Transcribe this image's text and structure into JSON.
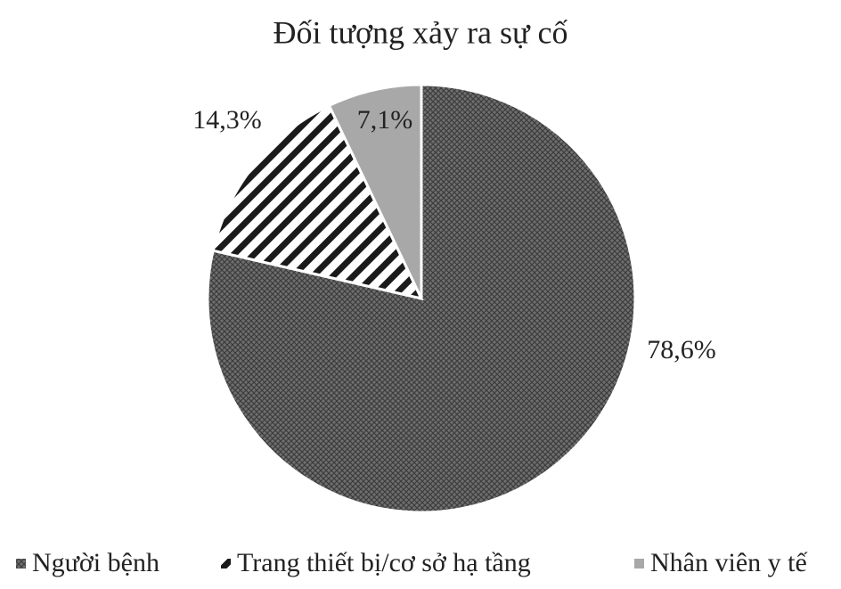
{
  "chart_data": {
    "type": "pie",
    "title": "Đối tượng xảy ra sự cố",
    "categories": [
      "Người bệnh",
      "Trang thiết bị/cơ sở hạ tầng",
      "Nhân viên y tế"
    ],
    "values": [
      78.6,
      14.3,
      7.1
    ],
    "value_labels": [
      "78,6%",
      "14,3%",
      "7,1%"
    ],
    "colors": [
      "#6f6f6f",
      "#1a1a1a",
      "#a8a8a8"
    ],
    "legend": "bottom"
  }
}
